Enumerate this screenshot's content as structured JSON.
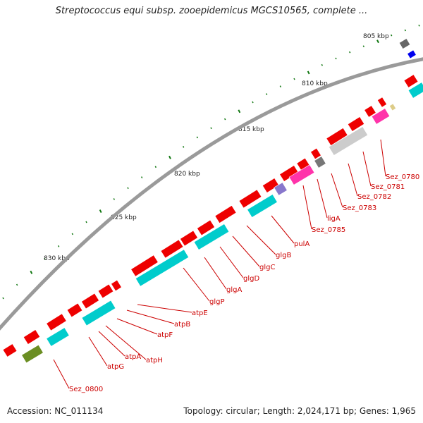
{
  "title": "Streptococcus equi subsp. zooepidemicus MGCS10565, complete ...",
  "footer": {
    "accession": "Accession: NC_011134",
    "summary": "Topology: circular; Length: 2,024,171 bp; Genes: 1,965"
  },
  "ruler_labels": [
    "805 kbp",
    "810 kbp",
    "815 kbp",
    "820 kbp",
    "825 kbp",
    "830 kbp"
  ],
  "gene_labels": [
    "Sez_0780",
    "Sez_0781",
    "Sez_0782",
    "Sez_0783",
    "ligA",
    "Sez_0785",
    "pulA",
    "glgB",
    "glgC",
    "glgD",
    "glgA",
    "glgP",
    "atpE",
    "atpB",
    "atpF",
    "atpH",
    "atpA",
    "atpG",
    "Sez_0800"
  ],
  "colors": {
    "cds": "#ee0000",
    "cog_metabolism": "#00cccc",
    "cog_other": "#cccccc",
    "cog_replication": "#ff33aa",
    "label": "#cc0000",
    "backbone": "#888888"
  }
}
